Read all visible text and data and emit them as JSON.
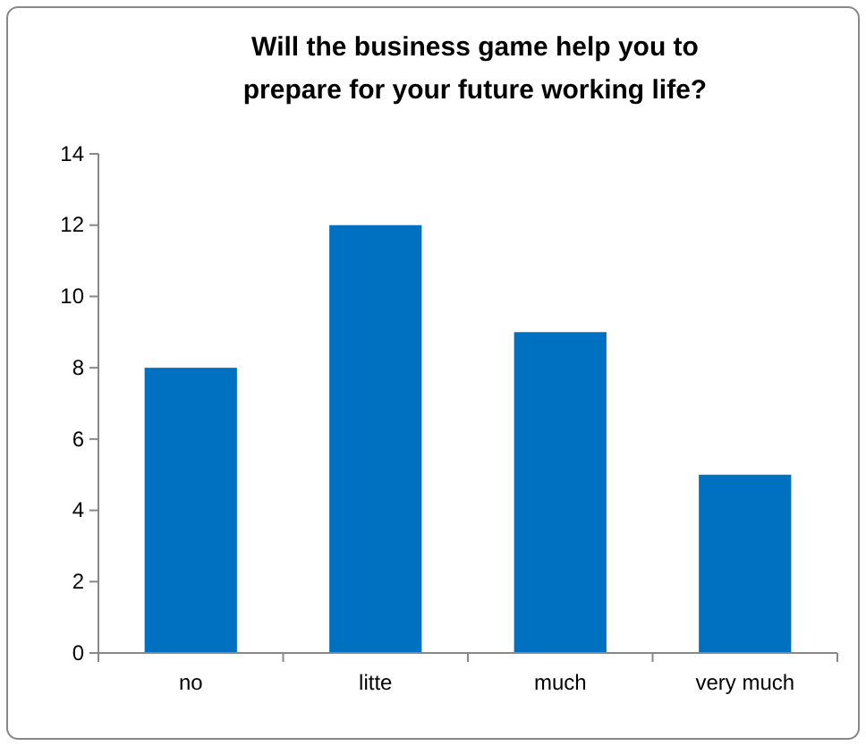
{
  "chart_data": {
    "type": "bar",
    "title": "Will the business game help you to prepare for your future working life?",
    "categories": [
      "no",
      "litte",
      "much",
      "very much"
    ],
    "values": [
      8,
      12,
      9,
      5
    ],
    "color": "#0070c0",
    "ylim": [
      0,
      14
    ],
    "yticks": [
      0,
      2,
      4,
      6,
      8,
      10,
      12,
      14
    ],
    "grid": false
  }
}
